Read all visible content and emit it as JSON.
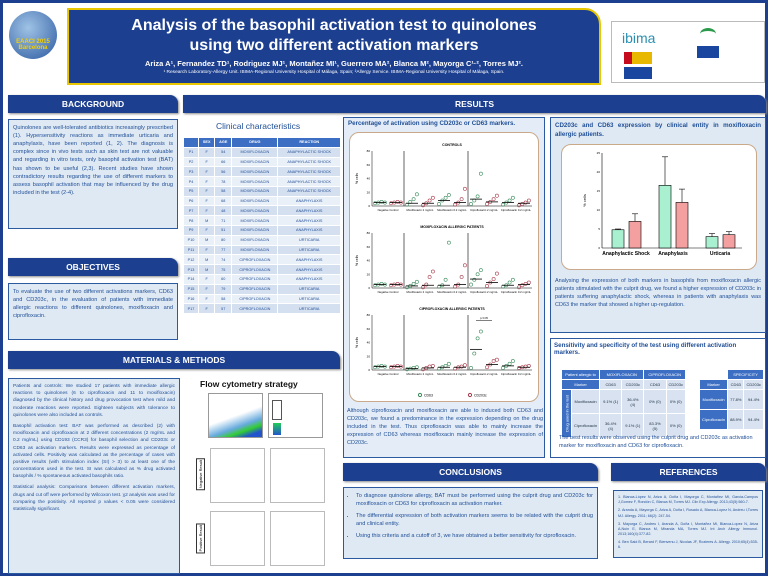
{
  "header": {
    "logo_text": "EAACI 2015 Barcelona",
    "title": "Analysis of the basophil activation test to quinolones using two different activation markers",
    "authors": "Ariza A¹, Fernandez TD¹, Rodriguez MJ¹, Montañez MI¹, Guerrero MA², Blanca M², Mayorga C¹·², Torres MJ².",
    "affiliations": "¹ Research Laboratory-Allergy Unit. IBIMA-Regional University Hospital of Málaga, Spain; ²Allergy Service. IBIMA-Regional University Hospital of Málaga, Spain.",
    "sponsor_logo": "ibima"
  },
  "background": {
    "heading": "BACKGROUND",
    "text": "Quinolones are well-tolerated antibiotics increasingly prescribed (1). Hypersensitivity reactions as immediate urticaria and anaphylaxis, have been reported (1, 2). The diagnosis is complex since in vivo tests such as skin test are not valuable and regarding in vitro tests, only basophil activation test (BAT) has shown to be useful (2,3). Recent studies have shown contradictory results regarding the use of different markers to assess basophil activation that may be influenced by the drug included in the test (2-4)."
  },
  "objectives": {
    "heading": "OBJECTIVES",
    "text": "To evaluate the use of two different activations markers, CD63 and CD203c, in the evaluation of patients with immediate allergic reactions to different quinolones, moxifloxacin and ciprofloxacin."
  },
  "methods": {
    "heading": "MATERIALS & METHODS",
    "paragraphs": [
      "Patients and controls: We studied 17 patients with immediate allergic reactions to quinolones (6 to ciprofloxacin and 11 to moxifloxacin) diagnosed by the clinical history and drug provocation test when mild and moderate reactions were reported. Eighteen subjects with tolerance to quinolones were also included as controls.",
      "Basophil activation test: BAT was performed as described (2) with moxifloxacin and ciprofloxacin at 2 different concentrations (2 mg/mL and 0.2 mg/mL) using CD193 (CCR3) for basophil selection and CD203c or CD63 as activation markers. Results were expressed as percentage of activated cells. Positivity was calculated as the percentage of cases with positive results (with stimulation index (SI) > 3) to at least one of the concentrations used in the test. SI was calculated as % drug activated basophils / % spontaneous activated basophils ratio.",
      "Statistical analysis: Comparisons between different activation markers, drugs and cut off were performed by Wilcoxon test. χ2 analysis was used for comparing the positivity. All reported p values < 0.05 were considered statistically significant."
    ],
    "flow_title": "Flow cytometry strategy",
    "negative_label": "Negative Result",
    "positive_label": "Positive Result"
  },
  "results": {
    "heading": "RESULTS",
    "clinical": {
      "title": "Clinical characteristics",
      "columns": [
        "",
        "SEX",
        "AGE",
        "DRUG",
        "REACTION"
      ],
      "rows": [
        [
          "P1",
          "F",
          "54",
          "MOXIFLOXACIN",
          "ANAPHYLACTIC SHOCK"
        ],
        [
          "P2",
          "F",
          "66",
          "MOXIFLOXACIN",
          "ANAPHYLACTIC SHOCK"
        ],
        [
          "P3",
          "F",
          "56",
          "MOXIFLOXACIN",
          "ANAPHYLACTIC SHOCK"
        ],
        [
          "P4",
          "F",
          "78",
          "MOXIFLOXACIN",
          "ANAPHYLACTIC SHOCK"
        ],
        [
          "P5",
          "F",
          "58",
          "MOXIFLOXACIN",
          "ANAPHYLACTIC SHOCK"
        ],
        [
          "P6",
          "F",
          "68",
          "MOXIFLOXACIN",
          "ANAPHYLAXIS"
        ],
        [
          "P7",
          "F",
          "48",
          "MOXIFLOXACIN",
          "ANAPHYLAXIS"
        ],
        [
          "P8",
          "M",
          "71",
          "MOXIFLOXACIN",
          "ANAPHYLAXIS"
        ],
        [
          "P9",
          "F",
          "51",
          "MOXIFLOXACIN",
          "ANAPHYLAXIS"
        ],
        [
          "P10",
          "M",
          "80",
          "MOXIFLOXACIN",
          "URTICARIA"
        ],
        [
          "P11",
          "F",
          "77",
          "MOXIFLOXACIN",
          "URTICARIA"
        ],
        [
          "P12",
          "M",
          "74",
          "CIPROFLOXACIN",
          "ANAPHYLAXIS"
        ],
        [
          "P13",
          "M",
          "75",
          "CIPROFLOXACIN",
          "ANAPHYLAXIS"
        ],
        [
          "P14",
          "F",
          "60",
          "CIPROFLOXACIN",
          "ANAPHYLAXIS"
        ],
        [
          "P15",
          "F",
          "79",
          "CIPROFLOXACIN",
          "URTICARIA"
        ],
        [
          "P16",
          "F",
          "58",
          "CIPROFLOXACIN",
          "URTICARIA"
        ],
        [
          "P17",
          "F",
          "57",
          "CIPROFLOXACIN",
          "URTICARIA"
        ]
      ]
    },
    "activation_title": "Percentage of activation using CD203c or CD63 markers.",
    "activation_text": "Although ciprofloxacin and moxifloxacin are able to induced both CD63 and CD203c, we found a predominance in the expression depending on the drug included in the test. Thus ciprofloxacin was able to mainly increase the expression of CD63 whereas moxifloxacin mainly increase the expression of CD203c.",
    "entity_title": "CD203c and CD63 expression by clinical entity in moxifloxacin allergic patients.",
    "entity_text": "Analysing the expression of both markers in basophils from moxifloxacin allergic patients stimulated with the culprit drug, we found a higher expression of CD203c in patients suffering anaphylactic shock, whereas in patients with anaphylaxis was CD63 the marker that showed a higher up-regulation.",
    "sens_title": "Sensitivity and specificity of the test using different activation markers.",
    "sens_table": {
      "patient_allergic_to": "Patient allergic to",
      "moxi": "MOXIFLOXACIN",
      "cipro": "CIPROFLOXACIN",
      "marker": "Marker",
      "cd63": "CD63",
      "cd203c": "CD203c",
      "drug_used": "Drug used in the test",
      "rows": [
        {
          "drug": "Moxifloxacin",
          "vals": [
            "9.1% (1)",
            "36.4% (4)",
            "0% (0)",
            "0% (0)"
          ]
        },
        {
          "drug": "Ciprofloxacin",
          "vals": [
            "36.4% (4)",
            "9.1% (1)",
            "83.3% (5)",
            "0% (0)"
          ]
        }
      ]
    },
    "spec_table": {
      "heading": "SPECIFICITY",
      "marker": "Marker",
      "cd63": "CD63",
      "cd203c": "CD203c",
      "rows": [
        {
          "drug": "Moxifloxacin",
          "vals": [
            "77.8%",
            "94.4%"
          ]
        },
        {
          "drug": "Ciprofloxacin",
          "vals": [
            "88.9%",
            "94.4%"
          ]
        }
      ]
    },
    "sens_text": "The best results were observed using the culprit drug and CD203c as activation marker for moxifloxacin and CD63 for ciprofloxacin."
  },
  "conclusions": {
    "heading": "CONCLUSIONS",
    "items": [
      "To diagnose quinolone allergy, BAT must be performed using the culprit drug and CD203c for moxifloxacin or CD63 for ciprofloxacin as activation marker.",
      "The differential expression of both activation markers seems to be related with the culprit drug and clinical entity.",
      "Using this criteria and a cutoff of 3, we have obtained a better sensitivity for ciprofloxacin."
    ]
  },
  "references": {
    "heading": "REFERENCES",
    "items": [
      "1. Blanca-López N, Ariza A, Doña I, Mayorga C, Montañez MI, Garcia-Campos J,Gomez F, Rondón C, Blanca M, Torres MJ. Clin Exp Allergy. 2013;43(5):560-7.",
      "2. Aranda A, Mayorga C, Ariza A, Doña I, Rosado A, Blanca-Lopez N, Andreu I,Torres MJ. Allergy. 2011; 66(2): 247-54.",
      "3. Mayorga C, Andreu I, Aranda A, Doña I, Montañez MI, Blanca-Lopez N, Ariza A,Nuin E, Blanca M, Miranda MA, Torres MJ. Int Arch Allergy Immunol. 2013;160(4):377-82.",
      "4. Ben Said B, Berard F, Bienvenu J, Nicolas JF, Rozieres A. Allergy. 2010;65(4):535-6."
    ]
  },
  "chart_data": [
    {
      "type": "scatter",
      "ylabel": "% cells",
      "ylim": [
        0,
        80
      ],
      "yticks": [
        0,
        20,
        40,
        60,
        80
      ],
      "categories": [
        "Negative Control",
        "Moxifloxacin 2 mg/mL",
        "Moxifloxacin 0.2 mg/mL",
        "Ciprofloxacin 2 mg/mL",
        "Ciprofloxacin 0.2 mg/mL"
      ],
      "legend": [
        "CD63",
        "CD203c"
      ],
      "colors": {
        "CD63": "#3a8a5a",
        "CD203c": "#a83a4a"
      },
      "panels": [
        {
          "title": "CONTROLS",
          "medians": [
            [
              5,
              5
            ],
            [
              4,
              4
            ],
            [
              8,
              5
            ],
            [
              10,
              6
            ],
            [
              5,
              4
            ]
          ],
          "points": [
            [
              [
                4,
                5,
                6,
                5
              ],
              [
                4,
                5,
                6,
                5
              ]
            ],
            [
              [
                2,
                6,
                10,
                17
              ],
              [
                1,
                4,
                8,
                12
              ]
            ],
            [
              [
                3,
                8,
                12,
                16
              ],
              [
                2,
                5,
                10,
                25
              ]
            ],
            [
              [
                3,
                8,
                14,
                47
              ],
              [
                3,
                6,
                10,
                15
              ]
            ],
            [
              [
                2,
                5,
                8,
                12
              ],
              [
                1,
                3,
                5,
                8
              ]
            ]
          ]
        },
        {
          "title": "MOXIFLOXACIN ALLERGIC PATIENTS",
          "medians": [
            [
              5,
              5
            ],
            [
              3,
              4
            ],
            [
              4,
              5
            ],
            [
              13,
              8
            ],
            [
              4,
              5
            ]
          ],
          "points": [
            [
              [
                4,
                5,
                6,
                5
              ],
              [
                4,
                5,
                6,
                5
              ]
            ],
            [
              [
                1,
                3,
                6,
                9
              ],
              [
                1,
                5,
                16,
                24
              ]
            ],
            [
              [
                2,
                4,
                12,
                66
              ],
              [
                2,
                5,
                16,
                33
              ]
            ],
            [
              [
                5,
                12,
                20,
                26
              ],
              [
                3,
                8,
                13,
                21
              ]
            ],
            [
              [
                2,
                4,
                8,
                12
              ],
              [
                1,
                4,
                6,
                8
              ]
            ]
          ]
        },
        {
          "title": "CIPROFLOXACIN ALLERGIC PATIENTS",
          "medians": [
            [
              5,
              5
            ],
            [
              2,
              3
            ],
            [
              4,
              4
            ],
            [
              30,
              8
            ],
            [
              6,
              4
            ]
          ],
          "points": [
            [
              [
                4,
                5,
                6,
                5
              ],
              [
                4,
                5,
                6,
                5
              ]
            ],
            [
              [
                1,
                2,
                3,
                4
              ],
              [
                1,
                3,
                5,
                6
              ]
            ],
            [
              [
                2,
                4,
                6,
                9
              ],
              [
                2,
                4,
                5,
                7
              ]
            ],
            [
              [
                3,
                24,
                46,
                56
              ],
              [
                4,
                8,
                13,
                15
              ]
            ],
            [
              [
                3,
                6,
                9,
                13
              ],
              [
                3,
                4,
                5,
                6
              ]
            ]
          ],
          "annotation": "p<0.05"
        }
      ]
    },
    {
      "type": "bar",
      "ylabel": "% cells",
      "ylim": [
        0,
        25
      ],
      "yticks": [
        0,
        5,
        10,
        15,
        20,
        25
      ],
      "categories": [
        "Anaphylactic Shock",
        "Anaphylaxis",
        "Urticaria"
      ],
      "series": [
        {
          "name": "CD63",
          "color": "#a8f0d0",
          "values": [
            4.8,
            16.5,
            3
          ],
          "errors": [
            0.2,
            7.5,
            0.8
          ]
        },
        {
          "name": "CD203c",
          "color": "#f4a0a0",
          "values": [
            7,
            12,
            3.5
          ],
          "errors": [
            2,
            3.5,
            0.8
          ]
        }
      ]
    }
  ]
}
